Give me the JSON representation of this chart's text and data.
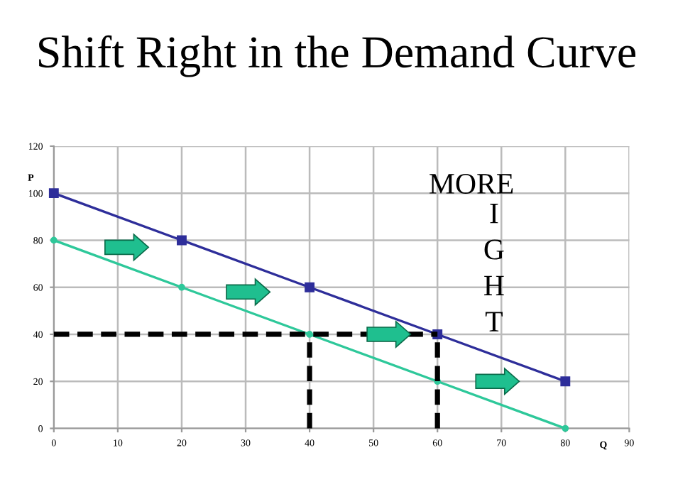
{
  "chart_data": {
    "type": "line",
    "title": "Shift Right in the Demand Curve",
    "xlabel": "Q",
    "ylabel": "P",
    "x": [
      0,
      20,
      40,
      60,
      80
    ],
    "series": [
      {
        "color": "#2e2e9a",
        "values": [
          100,
          80,
          60,
          40,
          20
        ],
        "marker": "square"
      },
      {
        "color": "#2ec89a",
        "values": [
          80,
          60,
          40,
          20,
          0
        ],
        "marker": "circle"
      },
      {
        "color": "#000000",
        "x": [
          0,
          60
        ],
        "values": [
          40,
          40
        ],
        "line_style": "dashed",
        "marker": "none"
      },
      {
        "color": "#000000",
        "x": [
          40,
          40
        ],
        "values": [
          0,
          40
        ],
        "line_style": "dashed",
        "marker": "none"
      },
      {
        "color": "#000000",
        "x": [
          60,
          60
        ],
        "values": [
          0,
          40
        ],
        "line_style": "dashed",
        "marker": "none"
      }
    ],
    "annotations": [
      "MORE",
      "I\nG\nH\nT"
    ],
    "xlim": [
      0,
      90
    ],
    "xticks": [
      0,
      10,
      20,
      30,
      40,
      50,
      60,
      70,
      80,
      90
    ],
    "ylim": [
      0,
      120
    ],
    "yticks": [
      0,
      20,
      40,
      60,
      80,
      100,
      120
    ],
    "grid": true,
    "legend": false
  }
}
